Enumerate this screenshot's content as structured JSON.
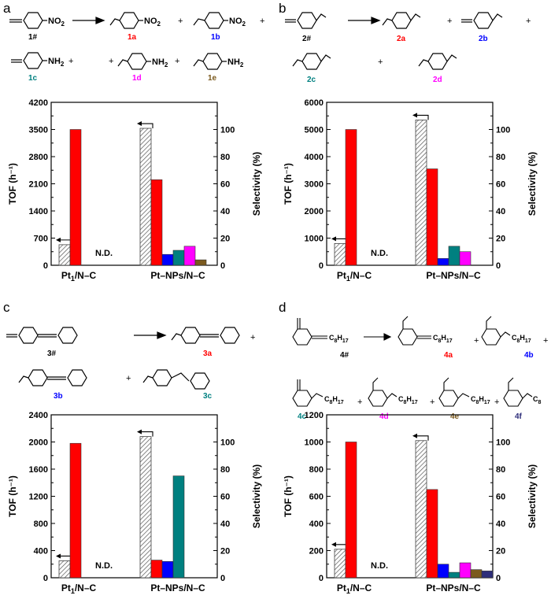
{
  "panels": [
    {
      "letter": "a",
      "scheme": {
        "reactant": "1#",
        "products": [
          {
            "label": "1a",
            "color": "#ff0000"
          },
          {
            "label": "1b",
            "color": "#0000ff"
          },
          {
            "label": "1c",
            "color": "#008080"
          },
          {
            "label": "1d",
            "color": "#ff00ff"
          },
          {
            "label": "1e",
            "color": "#7b5a1e"
          }
        ],
        "groups": {
          "nitro": "NO",
          "nitro_sub": "2",
          "amine": "NH",
          "amine_sub": "2",
          "plus": "+"
        }
      }
    },
    {
      "letter": "b",
      "scheme": {
        "reactant": "2#",
        "products": [
          {
            "label": "2a",
            "color": "#ff0000"
          },
          {
            "label": "2b",
            "color": "#0000ff"
          },
          {
            "label": "2c",
            "color": "#008080"
          },
          {
            "label": "2d",
            "color": "#ff00ff"
          }
        ],
        "groups": {
          "plus": "+"
        }
      }
    },
    {
      "letter": "c",
      "scheme": {
        "reactant": "3#",
        "products": [
          {
            "label": "3a",
            "color": "#ff0000"
          },
          {
            "label": "3b",
            "color": "#0000ff"
          },
          {
            "label": "3c",
            "color": "#008080"
          }
        ],
        "groups": {
          "plus": "+"
        }
      }
    },
    {
      "letter": "d",
      "scheme": {
        "reactant": "4#",
        "products": [
          {
            "label": "4a",
            "color": "#ff0000"
          },
          {
            "label": "4b",
            "color": "#0000ff"
          },
          {
            "label": "4c",
            "color": "#008080"
          },
          {
            "label": "4d",
            "color": "#ff00ff"
          },
          {
            "label": "4e",
            "color": "#7b5a1e"
          },
          {
            "label": "4f",
            "color": "#2e2e7a"
          }
        ],
        "groups": {
          "chain": "C",
          "chain_sub": "8",
          "chain_h": "H",
          "chain_h_sub": "17",
          "plus": "+"
        }
      }
    }
  ],
  "chart_data": [
    {
      "type": "bar",
      "panel": "a",
      "ylabel": "TOF (h⁻¹)",
      "y2label": "Selectivity (%)",
      "ylim": [
        0,
        4200
      ],
      "yticks": [
        "0",
        "700",
        "1400",
        "2100",
        "2800",
        "3500",
        "4200"
      ],
      "y2lim": [
        0,
        120
      ],
      "y2ticks": [
        "0",
        "20",
        "40",
        "60",
        "80",
        "100"
      ],
      "categories": [
        "Pt1/N–C",
        "Pt–NPs/N–C"
      ],
      "category_main": [
        "Pt",
        "Pt–NPs/N–C"
      ],
      "category_sub": [
        "1",
        ""
      ],
      "category_tail": [
        "/N–C",
        ""
      ],
      "tof": [
        530,
        3530
      ],
      "series": [
        {
          "name": "1a",
          "color": "#ff0000",
          "values": [
            100,
            63
          ]
        },
        {
          "name": "1b",
          "color": "#0000ff",
          "values": [
            null,
            8
          ]
        },
        {
          "name": "1c",
          "color": "#008080",
          "values": [
            null,
            11
          ]
        },
        {
          "name": "1d",
          "color": "#ff00ff",
          "values": [
            null,
            14
          ]
        },
        {
          "name": "1e",
          "color": "#7b5a1e",
          "values": [
            null,
            4
          ]
        }
      ],
      "nd_label": "N.D."
    },
    {
      "type": "bar",
      "panel": "b",
      "ylabel": "TOF (h⁻¹)",
      "y2label": "Selectivity (%)",
      "ylim": [
        0,
        6000
      ],
      "yticks": [
        "0",
        "1000",
        "2000",
        "3000",
        "4000",
        "5000",
        "6000"
      ],
      "y2lim": [
        0,
        120
      ],
      "y2ticks": [
        "0",
        "20",
        "40",
        "60",
        "80",
        "100"
      ],
      "categories": [
        "Pt1/N–C",
        "Pt–NPs/N–C"
      ],
      "category_main": [
        "Pt",
        "Pt–NPs/N–C"
      ],
      "category_sub": [
        "1",
        ""
      ],
      "category_tail": [
        "/N–C",
        ""
      ],
      "tof": [
        800,
        5350
      ],
      "series": [
        {
          "name": "2a",
          "color": "#ff0000",
          "values": [
            100,
            71
          ]
        },
        {
          "name": "2b",
          "color": "#0000ff",
          "values": [
            null,
            5
          ]
        },
        {
          "name": "2c",
          "color": "#008080",
          "values": [
            null,
            14
          ]
        },
        {
          "name": "2d",
          "color": "#ff00ff",
          "values": [
            null,
            10
          ]
        }
      ],
      "nd_label": "N.D."
    },
    {
      "type": "bar",
      "panel": "c",
      "ylabel": "TOF (h⁻¹)",
      "y2label": "Selectivity (%)",
      "ylim": [
        0,
        2400
      ],
      "yticks": [
        "0",
        "400",
        "800",
        "1200",
        "1600",
        "2000",
        "2400"
      ],
      "y2lim": [
        0,
        120
      ],
      "y2ticks": [
        "0",
        "20",
        "40",
        "60",
        "80",
        "100"
      ],
      "categories": [
        "Pt1/N–C",
        "Pt–NPs/N–C"
      ],
      "category_main": [
        "Pt",
        "Pt–NPs/N–C"
      ],
      "category_sub": [
        "1",
        ""
      ],
      "category_tail": [
        "/N–C",
        ""
      ],
      "tof": [
        250,
        2080
      ],
      "series": [
        {
          "name": "3a",
          "color": "#ff0000",
          "values": [
            99,
            13
          ]
        },
        {
          "name": "3b",
          "color": "#0000ff",
          "values": [
            null,
            12
          ]
        },
        {
          "name": "3c",
          "color": "#008080",
          "values": [
            null,
            75
          ]
        }
      ],
      "nd_label": "N.D."
    },
    {
      "type": "bar",
      "panel": "d",
      "ylabel": "TOF (h⁻¹)",
      "y2label": "Selectivity (%)",
      "ylim": [
        0,
        1200
      ],
      "yticks": [
        "0",
        "200",
        "400",
        "600",
        "800",
        "1000",
        "1200"
      ],
      "y2lim": [
        0,
        120
      ],
      "y2ticks": [
        "0",
        "20",
        "40",
        "60",
        "80",
        "100"
      ],
      "categories": [
        "Pt1/N–C",
        "Pt–NPs/N–C"
      ],
      "category_main": [
        "Pt",
        "Pt–NPs/N–C"
      ],
      "category_sub": [
        "1",
        ""
      ],
      "category_tail": [
        "/N–C",
        ""
      ],
      "tof": [
        210,
        1010
      ],
      "series": [
        {
          "name": "4a",
          "color": "#ff0000",
          "values": [
            100,
            65
          ]
        },
        {
          "name": "4b",
          "color": "#0000ff",
          "values": [
            null,
            10
          ]
        },
        {
          "name": "4c",
          "color": "#008080",
          "values": [
            null,
            4
          ]
        },
        {
          "name": "4d",
          "color": "#ff00ff",
          "values": [
            null,
            11
          ]
        },
        {
          "name": "4e",
          "color": "#7b5a1e",
          "values": [
            null,
            6
          ]
        },
        {
          "name": "4f",
          "color": "#2e2e7a",
          "values": [
            null,
            5
          ]
        }
      ],
      "nd_label": "N.D."
    }
  ]
}
